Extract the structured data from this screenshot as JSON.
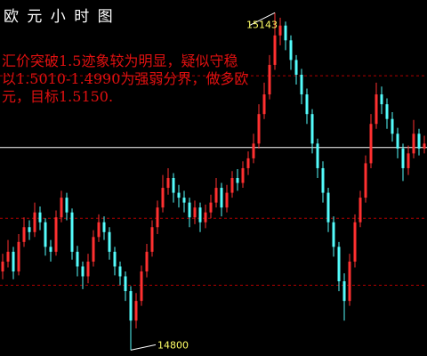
{
  "chart_data": {
    "type": "candlestick",
    "title": "欧 元 小 时 图",
    "annotation": [
      "汇价突破1.5迹象较为明显，疑似守稳",
      "以1.5010-1.4990为强弱分界，做多欧",
      "元，目标1.5150."
    ],
    "up_color": "#ff3030",
    "down_color": "#54fcfc",
    "hline_color": "#b00000",
    "current_color": "#ffffff",
    "label_color": "#ffff66",
    "ylim": [
      14794,
      15156
    ],
    "hlines": [
      15079,
      14934,
      14866
    ],
    "current": 15006,
    "open": [
      14880,
      14890,
      14900,
      14880,
      14910,
      14925,
      14920,
      14940,
      14930,
      14905,
      14900,
      14935,
      14955,
      14940,
      14900,
      14885,
      14875,
      14890,
      14915,
      14930,
      14920,
      14900,
      14885,
      14875,
      14860,
      14830,
      14850,
      14880,
      14900,
      14925,
      14945,
      14965,
      14975,
      14960,
      14955,
      14950,
      14935,
      14945,
      14930,
      14940,
      14950,
      14965,
      14945,
      14960,
      14975,
      14970,
      14985,
      14995,
      15010,
      15040,
      15060,
      15090,
      15120,
      15130,
      15115,
      15095,
      15080,
      15060,
      15040,
      15010,
      14985,
      14960,
      14930,
      14905,
      14870,
      14850,
      14890,
      14930,
      14955,
      14990,
      15030,
      15060,
      15050,
      15035,
      15020,
      15005,
      14985,
      15000,
      15020,
      15005
    ],
    "high": [
      14898,
      14912,
      14905,
      14918,
      14935,
      14932,
      14950,
      14946,
      14934,
      14912,
      14942,
      14962,
      14960,
      14944,
      14906,
      14890,
      14898,
      14922,
      14938,
      14936,
      14925,
      14905,
      14890,
      14880,
      14865,
      14858,
      14886,
      14908,
      14932,
      14952,
      14978,
      14985,
      14980,
      14968,
      14962,
      14955,
      14952,
      14950,
      14948,
      14958,
      14975,
      14970,
      14968,
      14982,
      14984,
      14992,
      15002,
      15020,
      15050,
      15072,
      15100,
      15143,
      15138,
      15134,
      15120,
      15100,
      15086,
      15066,
      15045,
      15015,
      14992,
      14965,
      14936,
      14910,
      14878,
      14898,
      14938,
      14962,
      14998,
      15040,
      15072,
      15068,
      15056,
      15042,
      15026,
      15010,
      15008,
      15034,
      15025,
      15018
    ],
    "low": [
      14872,
      14884,
      14872,
      14876,
      14905,
      14912,
      14915,
      14922,
      14896,
      14890,
      14896,
      14930,
      14932,
      14892,
      14875,
      14862,
      14868,
      14885,
      14910,
      14912,
      14892,
      14876,
      14866,
      14850,
      14800,
      14822,
      14845,
      14874,
      14895,
      14918,
      14940,
      14958,
      14950,
      14945,
      14940,
      14925,
      14928,
      14920,
      14924,
      14934,
      14945,
      14936,
      14940,
      14955,
      14962,
      14965,
      14978,
      14990,
      15005,
      15035,
      15055,
      15085,
      15110,
      15105,
      15085,
      15070,
      15050,
      15030,
      15000,
      14975,
      14950,
      14920,
      14895,
      14860,
      14830,
      14845,
      14884,
      14925,
      14950,
      14985,
      15025,
      15040,
      15025,
      15012,
      14995,
      14972,
      14978,
      14995,
      14998,
      15000
    ],
    "close": [
      14890,
      14900,
      14880,
      14910,
      14925,
      14920,
      14940,
      14930,
      14905,
      14900,
      14935,
      14955,
      14940,
      14900,
      14885,
      14875,
      14890,
      14915,
      14930,
      14920,
      14900,
      14885,
      14875,
      14860,
      14830,
      14850,
      14880,
      14900,
      14925,
      14945,
      14965,
      14975,
      14960,
      14955,
      14950,
      14935,
      14945,
      14930,
      14940,
      14950,
      14965,
      14945,
      14960,
      14975,
      14970,
      14985,
      14995,
      15010,
      15040,
      15060,
      15090,
      15120,
      15130,
      15115,
      15095,
      15080,
      15060,
      15040,
      15010,
      14985,
      14960,
      14930,
      14905,
      14870,
      14850,
      14890,
      14930,
      14955,
      14990,
      15030,
      15060,
      15050,
      15035,
      15020,
      15005,
      14985,
      15000,
      15020,
      15005,
      15010
    ],
    "peak": 51,
    "trough": 24
  }
}
